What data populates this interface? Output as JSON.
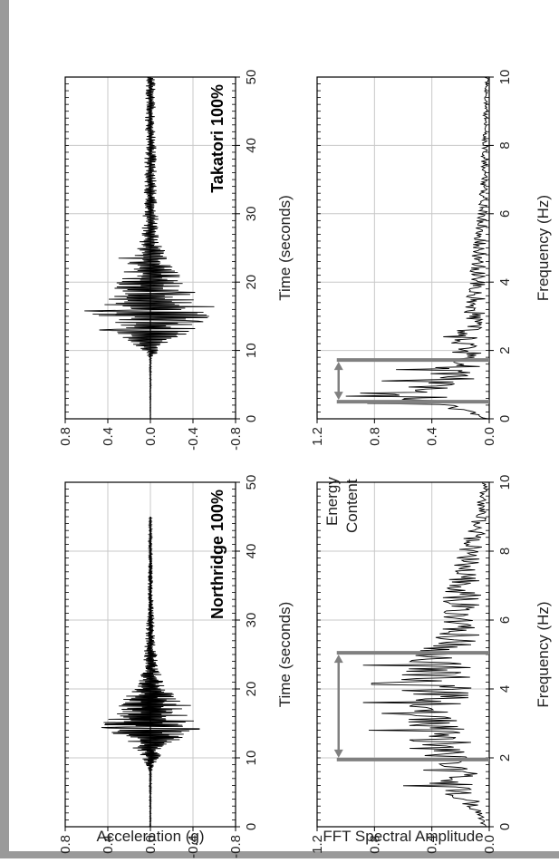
{
  "figure": {
    "acc_ylabel": "Acceleration (g)",
    "fft_ylabel": "FFT Spectral Amplitude",
    "time_xlabel": "Time (seconds)",
    "freq_xlabel": "Frequency (Hz)",
    "annotation_line1": "Energy",
    "annotation_line2": "Content"
  },
  "chart_data": [
    {
      "id": "northridge-acc",
      "type": "line",
      "title": "Northridge 100%",
      "xlabel": "Time (seconds)",
      "ylabel": "Acceleration (g)",
      "xlim": [
        0,
        50
      ],
      "ylim": [
        -0.8,
        0.8
      ],
      "xticks": [
        "0",
        "10",
        "20",
        "30",
        "40",
        "50"
      ],
      "yticks": [
        "0.8",
        "0.4",
        "0.0",
        "-0.4",
        "-0.8"
      ],
      "grid": true,
      "envelope": [
        [
          0,
          0.005
        ],
        [
          8,
          0.01
        ],
        [
          10,
          0.08
        ],
        [
          12,
          0.2
        ],
        [
          13.5,
          0.42
        ],
        [
          14.5,
          0.48
        ],
        [
          15.5,
          0.42
        ],
        [
          17,
          0.3
        ],
        [
          18,
          0.32
        ],
        [
          20,
          0.16
        ],
        [
          23,
          0.08
        ],
        [
          27,
          0.05
        ],
        [
          32,
          0.03
        ],
        [
          38,
          0.02
        ],
        [
          45,
          0.01
        ]
      ],
      "peaks": [
        [
          14.2,
          -0.46
        ],
        [
          14.4,
          0.46
        ],
        [
          17.6,
          -0.38
        ],
        [
          15.2,
          -0.33
        ],
        [
          13.5,
          0.35
        ]
      ],
      "signal_end": 45,
      "seed": 7,
      "dt": 0.08
    },
    {
      "id": "takatori-acc",
      "type": "line",
      "title": "Takatori 100%",
      "xlabel": "Time (seconds)",
      "ylabel": "Acceleration (g)",
      "xlim": [
        0,
        50
      ],
      "ylim": [
        -0.8,
        0.8
      ],
      "xticks": [
        "0",
        "10",
        "20",
        "30",
        "40",
        "50"
      ],
      "yticks": [
        "0.8",
        "0.4",
        "0.0",
        "-0.4",
        "-0.8"
      ],
      "grid": true,
      "envelope": [
        [
          0,
          0.003
        ],
        [
          9,
          0.01
        ],
        [
          10,
          0.1
        ],
        [
          12,
          0.35
        ],
        [
          14,
          0.52
        ],
        [
          15.5,
          0.6
        ],
        [
          17,
          0.45
        ],
        [
          19,
          0.35
        ],
        [
          22,
          0.25
        ],
        [
          25,
          0.12
        ],
        [
          28,
          0.08
        ],
        [
          35,
          0.06
        ],
        [
          45,
          0.05
        ],
        [
          50,
          0.05
        ]
      ],
      "peaks": [
        [
          15.8,
          0.62
        ],
        [
          16.4,
          -0.6
        ],
        [
          14.3,
          -0.45
        ],
        [
          13,
          0.48
        ],
        [
          18.5,
          -0.42
        ],
        [
          23.5,
          0.3
        ]
      ],
      "signal_end": 50,
      "seed": 19,
      "dt": 0.1
    },
    {
      "id": "northridge-fft",
      "type": "line",
      "xlabel": "Frequency (Hz)",
      "ylabel": "FFT Spectral Amplitude",
      "xlim": [
        0,
        10
      ],
      "ylim": [
        0,
        1.2
      ],
      "xticks": [
        "0",
        "2",
        "4",
        "6",
        "8",
        "10"
      ],
      "yticks": [
        "1.2",
        "0.8",
        "0.4",
        "0.0"
      ],
      "grid": true,
      "envelope": [
        [
          0,
          0.05
        ],
        [
          0.4,
          0.1
        ],
        [
          0.8,
          0.25
        ],
        [
          1.2,
          0.45
        ],
        [
          1.8,
          0.5
        ],
        [
          2.2,
          0.55
        ],
        [
          2.8,
          0.6
        ],
        [
          3.6,
          0.6
        ],
        [
          4.2,
          0.65
        ],
        [
          4.8,
          0.6
        ],
        [
          5.4,
          0.42
        ],
        [
          6,
          0.38
        ],
        [
          7,
          0.3
        ],
        [
          8,
          0.22
        ],
        [
          9,
          0.12
        ],
        [
          10,
          0.05
        ]
      ],
      "peaks": [
        [
          2.8,
          0.84
        ],
        [
          3.6,
          0.88
        ],
        [
          4.15,
          0.82
        ],
        [
          4.7,
          0.88
        ],
        [
          1.2,
          0.6
        ],
        [
          3.3,
          0.75
        ]
      ],
      "energy_band": [
        1.95,
        5.05
      ],
      "band_top": 1.05,
      "seed": 33,
      "dx": 0.035
    },
    {
      "id": "takatori-fft",
      "type": "line",
      "xlabel": "Frequency (Hz)",
      "ylabel": "FFT Spectral Amplitude",
      "xlim": [
        0,
        10
      ],
      "ylim": [
        0,
        1.2
      ],
      "xticks": [
        "0",
        "2",
        "4",
        "6",
        "8",
        "10"
      ],
      "yticks": [
        "1.2",
        "0.8",
        "0.4",
        "0.0"
      ],
      "grid": true,
      "envelope": [
        [
          0,
          0.02
        ],
        [
          0.3,
          0.3
        ],
        [
          0.6,
          0.7
        ],
        [
          0.9,
          0.6
        ],
        [
          1.3,
          0.45
        ],
        [
          1.8,
          0.3
        ],
        [
          2.4,
          0.25
        ],
        [
          3,
          0.18
        ],
        [
          4,
          0.14
        ],
        [
          5,
          0.12
        ],
        [
          6,
          0.08
        ],
        [
          8,
          0.05
        ],
        [
          10,
          0.03
        ]
      ],
      "peaks": [
        [
          0.65,
          1.0
        ],
        [
          0.75,
          0.9
        ],
        [
          0.45,
          0.85
        ],
        [
          1.1,
          0.75
        ],
        [
          1.45,
          0.65
        ],
        [
          2.4,
          0.32
        ]
      ],
      "energy_band": [
        0.5,
        1.72
      ],
      "band_top": 1.05,
      "seed": 51,
      "dx": 0.03
    }
  ]
}
